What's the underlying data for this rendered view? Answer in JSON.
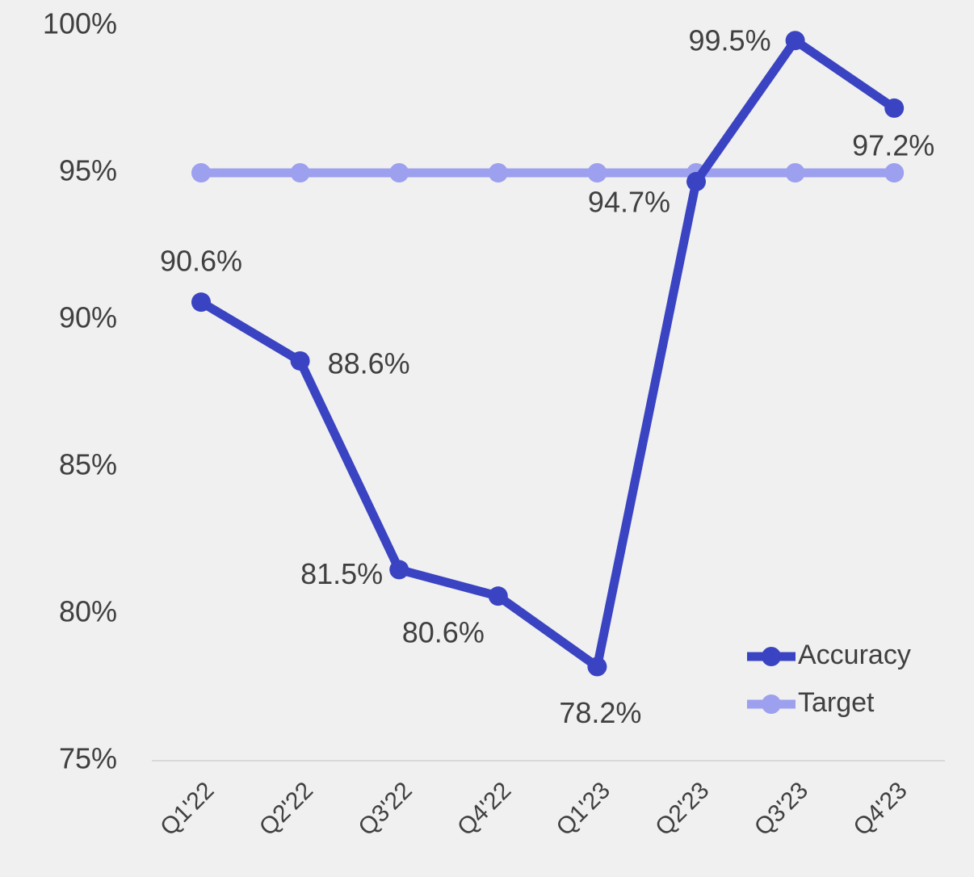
{
  "chart_data": {
    "type": "line",
    "categories": [
      "Q1'22",
      "Q2'22",
      "Q3'22",
      "Q4'22",
      "Q1'23",
      "Q2'23",
      "Q3'23",
      "Q4'23"
    ],
    "series": [
      {
        "name": "Accuracy",
        "color": "#3a44c2",
        "values": [
          90.6,
          88.6,
          81.5,
          80.6,
          78.2,
          94.7,
          99.5,
          97.2
        ],
        "value_labels": [
          "90.6%",
          "88.6%",
          "81.5%",
          "80.6%",
          "78.2%",
          "94.7%",
          "99.5%",
          "97.2%"
        ]
      },
      {
        "name": "Target",
        "color": "#9ca0ee",
        "values": [
          95,
          95,
          95,
          95,
          95,
          95,
          95,
          95
        ]
      }
    ],
    "ylim": [
      75,
      100
    ],
    "yticks": [
      {
        "value": 75,
        "label": "75%"
      },
      {
        "value": 80,
        "label": "80%"
      },
      {
        "value": 85,
        "label": "85%"
      },
      {
        "value": 90,
        "label": "90%"
      },
      {
        "value": 95,
        "label": "95%"
      },
      {
        "value": 100,
        "label": "100%"
      }
    ],
    "legend": "lower right"
  }
}
